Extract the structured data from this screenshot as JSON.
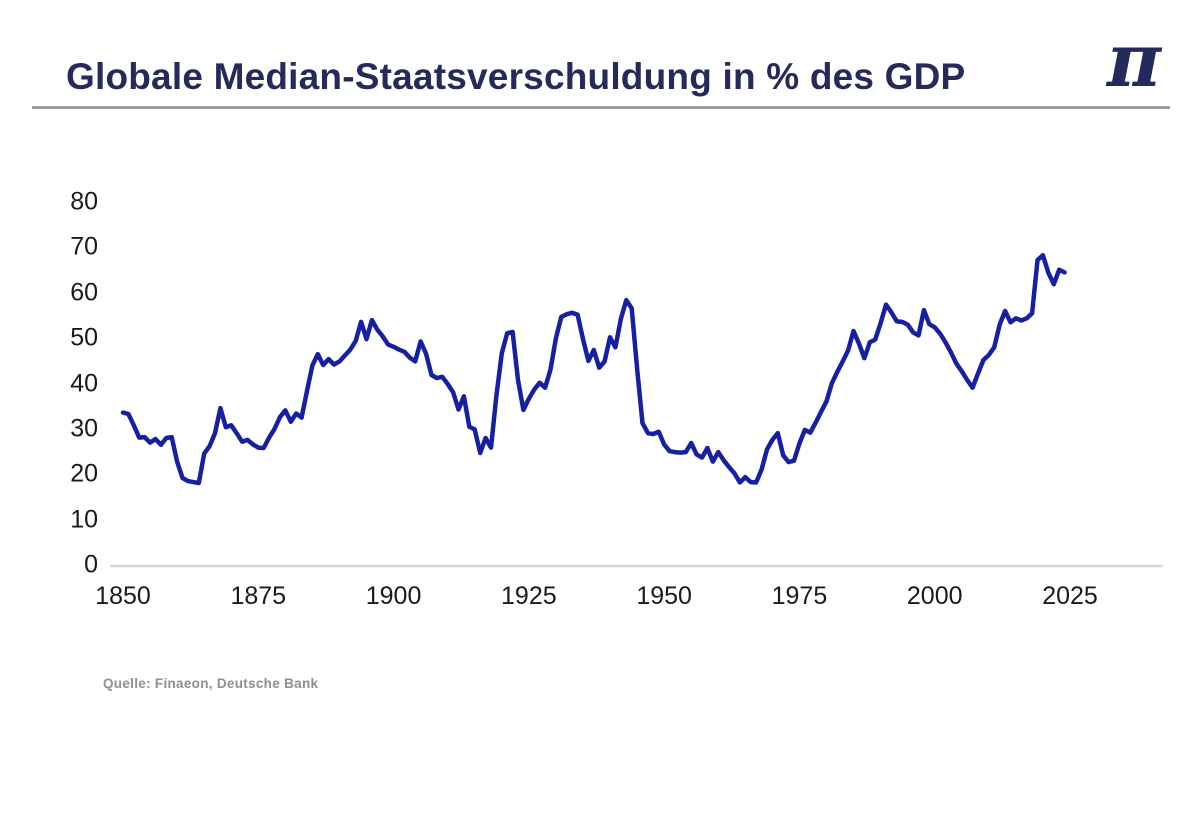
{
  "header": {
    "title": "Globale Median-Staatsverschuldung in % des GDP",
    "logo_symbol": "π"
  },
  "footer": {
    "source": "Quelle: Finaeon, Deutsche Bank"
  },
  "chart_data": {
    "type": "line",
    "title": "Globale Median-Staatsverschuldung in % des GDP",
    "xlabel": "",
    "ylabel": "",
    "xlim": [
      1850,
      2025
    ],
    "ylim": [
      0,
      80
    ],
    "grid": false,
    "legend_position": "none",
    "line_color": "#1820a2",
    "axis_line_color": "#d8d8d8",
    "tick_label_color": "#1a1a1a",
    "x_start_year": 1850,
    "x_end_year": 2024,
    "x_tick_labels": [
      1850,
      1875,
      1900,
      1925,
      1950,
      1975,
      2000,
      2025
    ],
    "y_tick_labels": [
      0,
      10,
      20,
      30,
      40,
      50,
      60,
      70,
      80
    ],
    "series": [
      {
        "name": "Globale Median-Staatsverschuldung in % des GDP",
        "values": [
          33.8,
          33.5,
          31.0,
          28.3,
          28.4,
          27.2,
          28.0,
          26.7,
          28.2,
          28.4,
          23.0,
          19.4,
          18.7,
          18.5,
          18.3,
          24.8,
          26.4,
          29.3,
          34.8,
          30.6,
          31.0,
          29.3,
          27.4,
          27.8,
          26.8,
          26.1,
          26.0,
          28.3,
          30.2,
          32.8,
          34.3,
          31.8,
          33.6,
          32.7,
          38.6,
          44.2,
          46.7,
          44.3,
          45.6,
          44.4,
          45.1,
          46.4,
          47.7,
          49.6,
          53.8,
          50.0,
          54.2,
          52.1,
          50.6,
          48.8,
          48.3,
          47.7,
          47.2,
          45.9,
          45.1,
          49.5,
          46.8,
          42.1,
          41.4,
          41.7,
          40.1,
          38.3,
          34.5,
          37.4,
          30.7,
          30.1,
          24.9,
          28.2,
          26.1,
          37.5,
          46.9,
          51.3,
          51.6,
          41.0,
          34.4,
          36.9,
          38.9,
          40.4,
          39.3,
          43.3,
          50.2,
          54.9,
          55.5,
          55.8,
          55.4,
          50.0,
          45.2,
          47.6,
          43.7,
          45.1,
          50.4,
          48.2,
          54.5,
          58.6,
          56.8,
          43.5,
          31.5,
          29.3,
          29.1,
          29.6,
          26.8,
          25.3,
          25.1,
          25.0,
          25.1,
          27.1,
          24.6,
          23.9,
          26.0,
          23.0,
          25.1,
          23.3,
          21.8,
          20.4,
          18.4,
          19.6,
          18.5,
          18.4,
          21.2,
          25.7,
          27.8,
          29.3,
          24.4,
          22.9,
          23.2,
          27.0,
          30.0,
          29.4,
          31.6,
          34.0,
          36.3,
          40.3,
          42.8,
          45.1,
          47.5,
          51.8,
          49.0,
          45.8,
          49.3,
          49.9,
          53.5,
          57.6,
          55.9,
          53.9,
          53.8,
          53.2,
          51.5,
          50.8,
          56.4,
          53.3,
          52.6,
          51.2,
          49.3,
          47.1,
          44.6,
          42.9,
          41.0,
          39.3,
          42.4,
          45.4,
          46.5,
          48.2,
          53.2,
          56.2,
          53.7,
          54.6,
          54.1,
          54.6,
          55.7,
          67.4,
          68.5,
          64.6,
          62.1,
          65.3,
          64.7
        ]
      }
    ],
    "source": "Quelle: Finaeon, Deutsche Bank"
  }
}
